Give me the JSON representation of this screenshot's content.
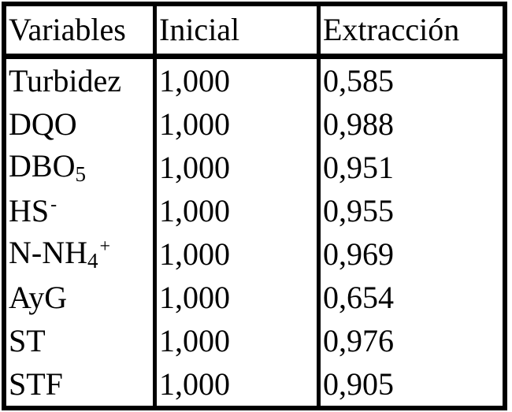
{
  "table": {
    "header": [
      "Variables",
      "Inicial",
      "Extracción"
    ],
    "rows": [
      [
        {
          "base": "Turbidez"
        },
        "1,000",
        "0,585"
      ],
      [
        {
          "base": "DQO"
        },
        "1,000",
        "0,988"
      ],
      [
        {
          "base": "DBO",
          "sub": "5"
        },
        "1,000",
        "0,951"
      ],
      [
        {
          "base": "HS",
          "sup": "-"
        },
        "1,000",
        "0,955"
      ],
      [
        {
          "base": "N-NH",
          "sub": "4",
          "sup": "+"
        },
        "1,000",
        "0,969"
      ],
      [
        {
          "base": "AyG"
        },
        "1,000",
        "0,654"
      ],
      [
        {
          "base": "ST"
        },
        "1,000",
        "0,976"
      ],
      [
        {
          "base": "STF"
        },
        "1,000",
        "0,905"
      ]
    ]
  }
}
